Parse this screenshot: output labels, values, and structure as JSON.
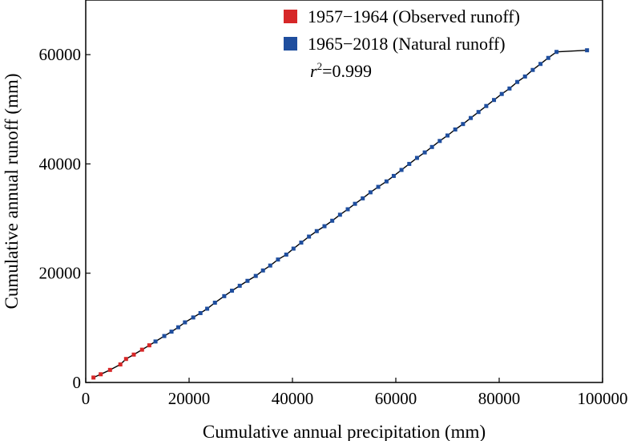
{
  "chart_data": {
    "type": "scatter",
    "xlabel": "Cumulative annual precipitation (mm)",
    "ylabel": "Cumulative annual runoff (mm)",
    "xlim": [
      0,
      100000
    ],
    "ylim": [
      0,
      70000
    ],
    "x_ticks": [
      "0",
      "20000",
      "40000",
      "60000",
      "80000",
      "100000"
    ],
    "y_ticks": [
      "0",
      "20000",
      "40000",
      "60000"
    ],
    "grid": false,
    "legend_position": "top-right",
    "annotation": {
      "symbol": "r",
      "superscript": "2",
      "text": "=0.999"
    },
    "fit_line": {
      "color": "#000000",
      "x": [
        1500,
        97000
      ],
      "y": [
        900,
        60800
      ]
    },
    "series": [
      {
        "name": "1957−1964 (Observed runoff)",
        "color": "#d62728",
        "x": [
          1500,
          2900,
          4700,
          6700,
          7800,
          9300,
          10900,
          12300
        ],
        "y": [
          900,
          1500,
          2300,
          3300,
          4300,
          5100,
          6000,
          6800
        ]
      },
      {
        "name": "1965−2018 (Natural runoff)",
        "color": "#1f4e9e",
        "x": [
          13500,
          15200,
          16600,
          17900,
          19200,
          20800,
          22200,
          23500,
          25000,
          26800,
          28300,
          29800,
          31300,
          32900,
          34300,
          35700,
          37200,
          38800,
          40200,
          41700,
          43200,
          44700,
          46200,
          47700,
          49200,
          50700,
          52100,
          53600,
          55100,
          56600,
          58200,
          59600,
          61100,
          62600,
          64100,
          65600,
          67000,
          68500,
          70000,
          71500,
          73000,
          74500,
          76000,
          77500,
          79000,
          80500,
          82000,
          83500,
          85000,
          86500,
          88000,
          89500,
          91100,
          97000
        ],
        "y": [
          7500,
          8500,
          9300,
          10100,
          11000,
          11900,
          12700,
          13500,
          14600,
          15800,
          16800,
          17700,
          18600,
          19500,
          20500,
          21400,
          22500,
          23400,
          24500,
          25600,
          26700,
          27700,
          28600,
          29600,
          30700,
          31700,
          32700,
          33700,
          34800,
          35800,
          36800,
          37800,
          38900,
          40000,
          41100,
          42100,
          43100,
          44200,
          45200,
          46300,
          47300,
          48400,
          49500,
          50600,
          51700,
          52800,
          53800,
          55000,
          56000,
          57200,
          58300,
          59400,
          60500,
          60800
        ]
      }
    ]
  }
}
